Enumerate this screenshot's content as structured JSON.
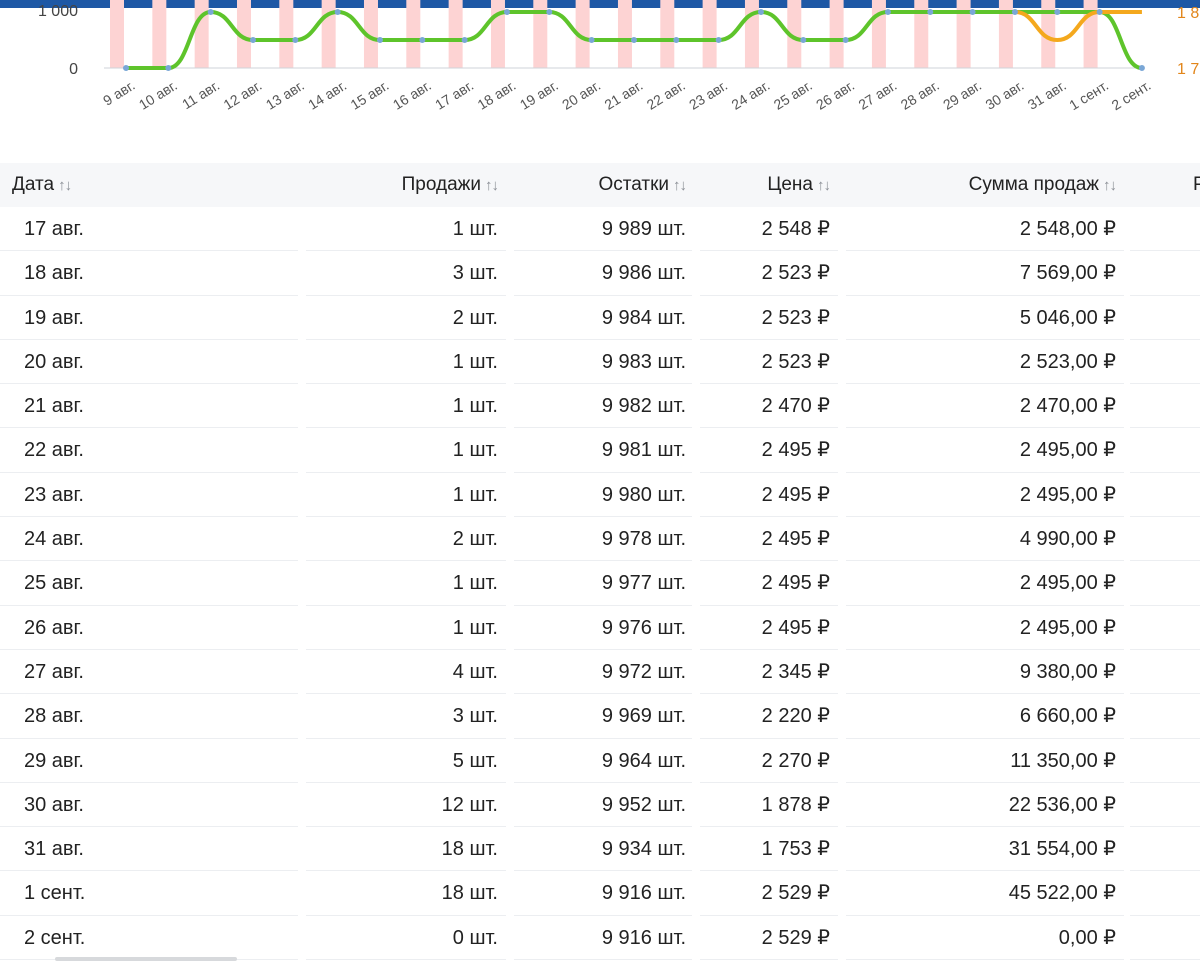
{
  "chart_data": {
    "type": "line",
    "x": [
      "9 авг.",
      "10 авг.",
      "11 авг.",
      "12 авг.",
      "13 авг.",
      "14 авг.",
      "15 авг.",
      "16 авг.",
      "17 авг.",
      "18 авг.",
      "19 авг.",
      "20 авг.",
      "21 авг.",
      "22 авг.",
      "23 авг.",
      "24 авг.",
      "25 авг.",
      "26 авг.",
      "27 авг.",
      "28 авг.",
      "29 авг.",
      "30 авг.",
      "31 авг.",
      "1 сент.",
      "2 сент."
    ],
    "y_left_ticks": [
      "1 000",
      "0"
    ],
    "y_right_ticks": [
      "1 8",
      "1 7"
    ],
    "series": [
      {
        "values": [
          0,
          0,
          1000,
          500,
          500,
          1000,
          500,
          500,
          500,
          1000,
          1000,
          500,
          500,
          500,
          500,
          1000,
          500,
          500,
          1000,
          1000,
          1000,
          1000,
          1000,
          1000,
          0
        ],
        "color": "#5ec42b"
      },
      {
        "values": [
          null,
          null,
          null,
          null,
          null,
          null,
          null,
          null,
          null,
          null,
          null,
          null,
          null,
          null,
          null,
          null,
          null,
          null,
          null,
          null,
          null,
          1000,
          500,
          1000,
          1000
        ],
        "color": "#f4a81d"
      }
    ],
    "bar_color": "#fdd3d3",
    "grid": false
  },
  "table": {
    "headers": {
      "date": "Дата",
      "sales": "Продажи",
      "stock": "Остатки",
      "price": "Цена",
      "sum": "Сумма продаж",
      "extra": "Р"
    },
    "sort_icon": "↑↓",
    "rows": [
      {
        "date": "17 авг.",
        "sales": "1 шт.",
        "stock": "9 989 шт.",
        "price": "2 548 ₽",
        "sum": "2 548,00 ₽"
      },
      {
        "date": "18 авг.",
        "sales": "3 шт.",
        "stock": "9 986 шт.",
        "price": "2 523 ₽",
        "sum": "7 569,00 ₽"
      },
      {
        "date": "19 авг.",
        "sales": "2 шт.",
        "stock": "9 984 шт.",
        "price": "2 523 ₽",
        "sum": "5 046,00 ₽"
      },
      {
        "date": "20 авг.",
        "sales": "1 шт.",
        "stock": "9 983 шт.",
        "price": "2 523 ₽",
        "sum": "2 523,00 ₽"
      },
      {
        "date": "21 авг.",
        "sales": "1 шт.",
        "stock": "9 982 шт.",
        "price": "2 470 ₽",
        "sum": "2 470,00 ₽"
      },
      {
        "date": "22 авг.",
        "sales": "1 шт.",
        "stock": "9 981 шт.",
        "price": "2 495 ₽",
        "sum": "2 495,00 ₽"
      },
      {
        "date": "23 авг.",
        "sales": "1 шт.",
        "stock": "9 980 шт.",
        "price": "2 495 ₽",
        "sum": "2 495,00 ₽"
      },
      {
        "date": "24 авг.",
        "sales": "2 шт.",
        "stock": "9 978 шт.",
        "price": "2 495 ₽",
        "sum": "4 990,00 ₽"
      },
      {
        "date": "25 авг.",
        "sales": "1 шт.",
        "stock": "9 977 шт.",
        "price": "2 495 ₽",
        "sum": "2 495,00 ₽"
      },
      {
        "date": "26 авг.",
        "sales": "1 шт.",
        "stock": "9 976 шт.",
        "price": "2 495 ₽",
        "sum": "2 495,00 ₽"
      },
      {
        "date": "27 авг.",
        "sales": "4 шт.",
        "stock": "9 972 шт.",
        "price": "2 345 ₽",
        "sum": "9 380,00 ₽"
      },
      {
        "date": "28 авг.",
        "sales": "3 шт.",
        "stock": "9 969 шт.",
        "price": "2 220 ₽",
        "sum": "6 660,00 ₽"
      },
      {
        "date": "29 авг.",
        "sales": "5 шт.",
        "stock": "9 964 шт.",
        "price": "2 270 ₽",
        "sum": "11 350,00 ₽"
      },
      {
        "date": "30 авг.",
        "sales": "12 шт.",
        "stock": "9 952 шт.",
        "price": "1 878 ₽",
        "sum": "22 536,00 ₽"
      },
      {
        "date": "31 авг.",
        "sales": "18 шт.",
        "stock": "9 934 шт.",
        "price": "1 753 ₽",
        "sum": "31 554,00 ₽"
      },
      {
        "date": "1 сент.",
        "sales": "18 шт.",
        "stock": "9 916 шт.",
        "price": "2 529 ₽",
        "sum": "45 522,00 ₽"
      },
      {
        "date": "2 сент.",
        "sales": "0 шт.",
        "stock": "9 916 шт.",
        "price": "2 529 ₽",
        "sum": "0,00 ₽"
      }
    ]
  }
}
